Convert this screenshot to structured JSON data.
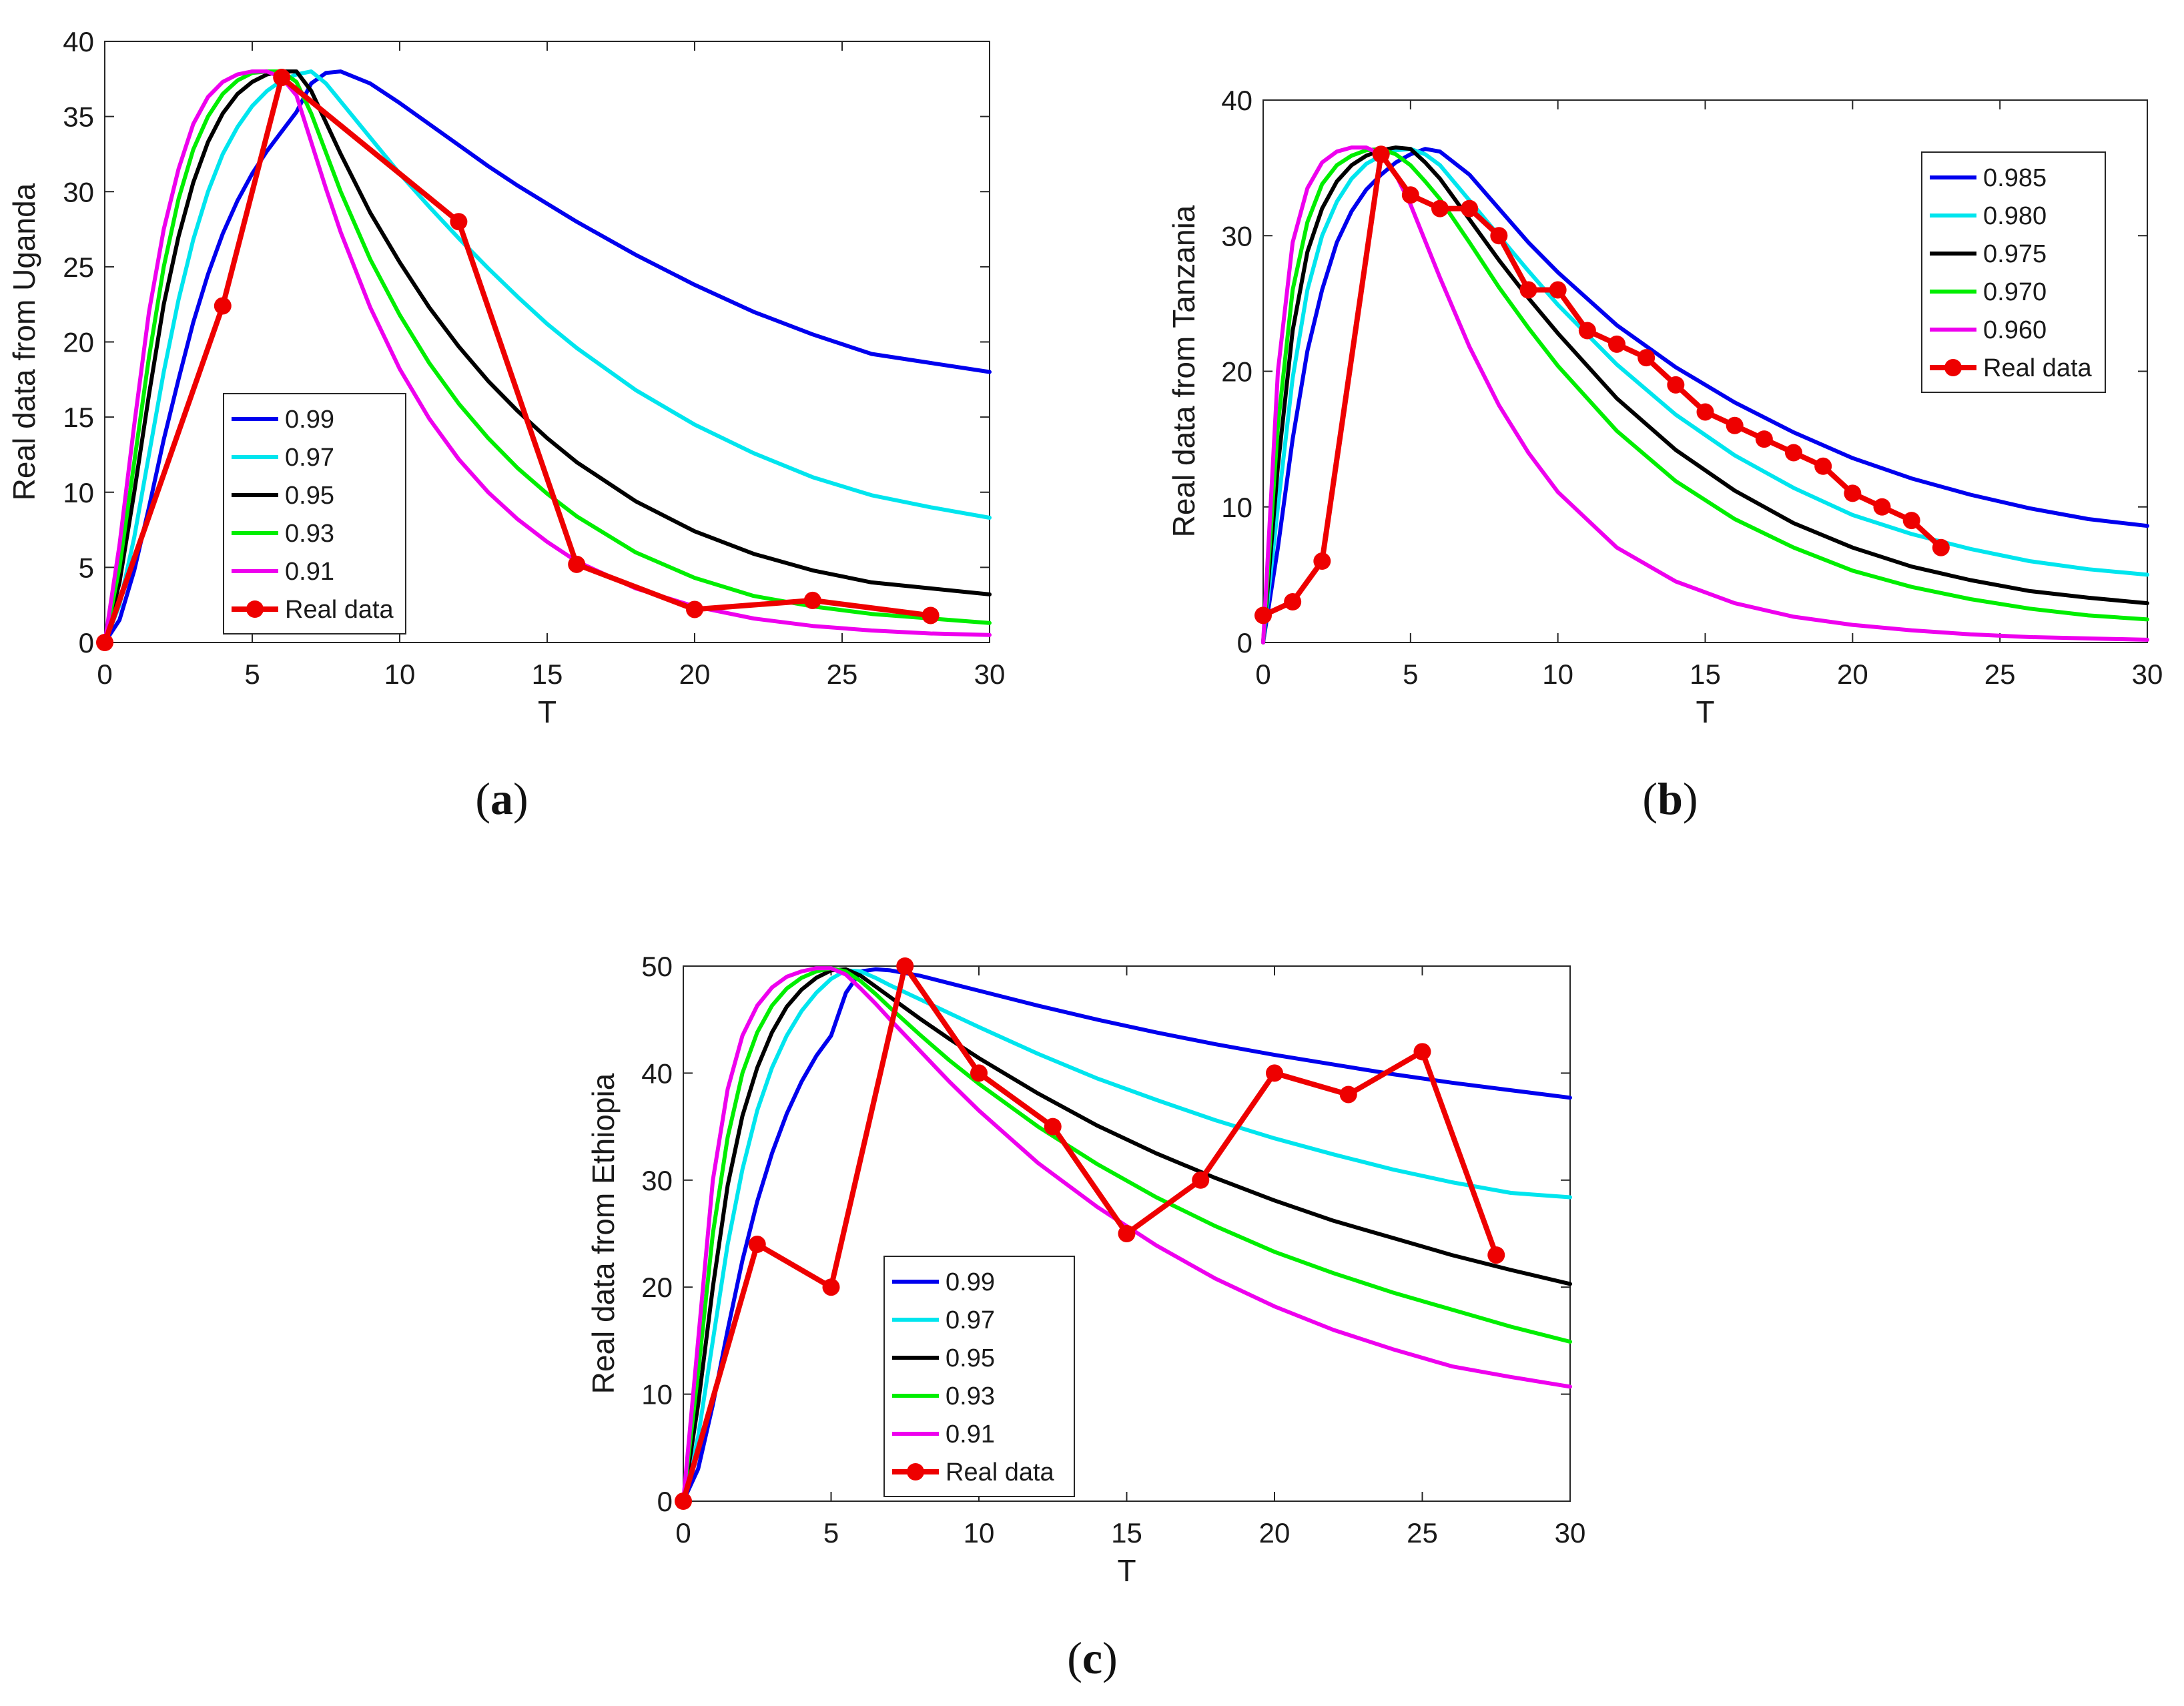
{
  "chart_data": [
    {
      "type": "line",
      "panel_label": "a",
      "xlabel": "T",
      "ylabel": "Real data from Uganda",
      "xlim": [
        0,
        30
      ],
      "ylim": [
        0,
        40
      ],
      "xticks": [
        0,
        5,
        10,
        15,
        20,
        25,
        30
      ],
      "yticks": [
        0,
        5,
        10,
        15,
        20,
        25,
        30,
        35,
        40
      ],
      "grid": false,
      "legend_position": "lower-left",
      "series": [
        {
          "name": "0.99",
          "color": "#0000ee",
          "x": [
            0,
            0.5,
            1,
            1.5,
            2,
            2.5,
            3,
            3.5,
            4,
            4.5,
            5,
            5.5,
            6,
            6.5,
            7,
            7.5,
            8,
            9,
            10,
            11,
            12,
            13,
            14,
            15,
            16,
            18,
            20,
            22,
            24,
            26,
            28,
            30
          ],
          "y": [
            0,
            1.5,
            4.8,
            9,
            13.5,
            17.5,
            21.3,
            24.5,
            27.2,
            29.4,
            31.2,
            32.7,
            34,
            35.3,
            37.2,
            37.9,
            38,
            37.2,
            35.9,
            34.5,
            33.1,
            31.7,
            30.4,
            29.2,
            28,
            25.8,
            23.8,
            22,
            20.5,
            19.2,
            18.6,
            18
          ]
        },
        {
          "name": "0.97",
          "color": "#00e5ee",
          "x": [
            0,
            0.5,
            1,
            1.5,
            2,
            2.5,
            3,
            3.5,
            4,
            4.5,
            5,
            5.5,
            6,
            6.5,
            7,
            7.5,
            8,
            9,
            10,
            11,
            12,
            13,
            14,
            15,
            16,
            18,
            20,
            22,
            24,
            26,
            28,
            30
          ],
          "y": [
            0,
            2.5,
            7,
            12.5,
            18,
            22.8,
            26.8,
            30,
            32.5,
            34.3,
            35.7,
            36.7,
            37.4,
            37.8,
            38,
            37.2,
            36,
            33.6,
            31.2,
            29,
            26.9,
            24.9,
            23,
            21.2,
            19.6,
            16.8,
            14.5,
            12.6,
            11,
            9.8,
            9,
            8.3
          ]
        },
        {
          "name": "0.95",
          "color": "#000000",
          "x": [
            0,
            0.5,
            1,
            1.5,
            2,
            2.5,
            3,
            3.5,
            4,
            4.5,
            5,
            5.5,
            6,
            6.5,
            7,
            7.5,
            8,
            9,
            10,
            11,
            12,
            13,
            14,
            15,
            16,
            18,
            20,
            22,
            24,
            26,
            28,
            30
          ],
          "y": [
            0,
            4,
            10,
            16.5,
            22.5,
            27,
            30.6,
            33.3,
            35.2,
            36.5,
            37.3,
            37.8,
            38,
            38,
            36.7,
            34.6,
            32.5,
            28.6,
            25.3,
            22.3,
            19.7,
            17.4,
            15.4,
            13.6,
            12,
            9.4,
            7.4,
            5.9,
            4.8,
            4,
            3.6,
            3.2
          ]
        },
        {
          "name": "0.93",
          "color": "#00ee00",
          "x": [
            0,
            0.5,
            1,
            1.5,
            2,
            2.5,
            3,
            3.5,
            4,
            4.5,
            5,
            5.5,
            6,
            6.5,
            7,
            7.5,
            8,
            9,
            10,
            11,
            12,
            13,
            14,
            15,
            16,
            18,
            20,
            22,
            24,
            26,
            28,
            30
          ],
          "y": [
            0,
            5,
            12,
            19,
            25,
            29.5,
            32.8,
            35,
            36.5,
            37.4,
            37.9,
            38,
            38,
            37.3,
            35.2,
            32.6,
            30,
            25.5,
            21.8,
            18.6,
            15.9,
            13.6,
            11.6,
            9.9,
            8.4,
            6,
            4.3,
            3.1,
            2.4,
            1.9,
            1.6,
            1.3
          ]
        },
        {
          "name": "0.91",
          "color": "#ee00ee",
          "x": [
            0,
            0.5,
            1,
            1.5,
            2,
            2.5,
            3,
            3.5,
            4,
            4.5,
            5,
            5.5,
            6,
            6.5,
            7,
            7.5,
            8,
            9,
            10,
            11,
            12,
            13,
            14,
            15,
            16,
            18,
            20,
            22,
            24,
            26,
            28,
            30
          ],
          "y": [
            0,
            6.5,
            14.5,
            22,
            27.5,
            31.5,
            34.5,
            36.3,
            37.3,
            37.8,
            38,
            38,
            37.6,
            36.4,
            33.3,
            30.2,
            27.3,
            22.3,
            18.2,
            14.9,
            12.2,
            10,
            8.2,
            6.7,
            5.4,
            3.6,
            2.4,
            1.6,
            1.1,
            0.8,
            0.6,
            0.5
          ]
        },
        {
          "name": "Real data",
          "color": "#ee0000",
          "markers": true,
          "x": [
            0,
            4,
            6,
            12,
            16,
            20,
            24,
            28
          ],
          "y": [
            0,
            22.4,
            37.6,
            28,
            5.2,
            2.2,
            2.8,
            1.8
          ]
        }
      ]
    },
    {
      "type": "line",
      "panel_label": "b",
      "xlabel": "T",
      "ylabel": "Real data from Tanzania",
      "xlim": [
        0,
        30
      ],
      "ylim": [
        0,
        40
      ],
      "xticks": [
        0,
        5,
        10,
        15,
        20,
        25,
        30
      ],
      "yticks": [
        0,
        10,
        20,
        30,
        40
      ],
      "grid": false,
      "legend_position": "top-right",
      "series": [
        {
          "name": "0.985",
          "color": "#0000ee",
          "x": [
            0,
            0.5,
            1,
            1.5,
            2,
            2.5,
            3,
            3.5,
            4,
            4.5,
            5,
            5.5,
            6,
            7,
            8,
            9,
            10,
            12,
            14,
            16,
            18,
            20,
            22,
            24,
            26,
            28,
            30
          ],
          "y": [
            0,
            7,
            15,
            21.5,
            26,
            29.5,
            31.8,
            33.4,
            34.5,
            35.4,
            36,
            36.4,
            36.2,
            34.5,
            32,
            29.5,
            27.3,
            23.4,
            20.3,
            17.7,
            15.5,
            13.6,
            12.1,
            10.9,
            9.9,
            9.1,
            8.6
          ]
        },
        {
          "name": "0.980",
          "color": "#00e5ee",
          "x": [
            0,
            0.5,
            1,
            1.5,
            2,
            2.5,
            3,
            3.5,
            4,
            4.5,
            5,
            5.5,
            6,
            7,
            8,
            9,
            10,
            12,
            14,
            16,
            18,
            20,
            22,
            24,
            26,
            28,
            30
          ],
          "y": [
            0,
            10,
            19.5,
            26,
            30,
            32.5,
            34.2,
            35.3,
            35.9,
            36.3,
            36.4,
            36,
            35.2,
            32.6,
            30,
            27.4,
            24.9,
            20.5,
            16.8,
            13.8,
            11.4,
            9.4,
            8,
            6.9,
            6,
            5.4,
            5
          ]
        },
        {
          "name": "0.975",
          "color": "#000000",
          "x": [
            0,
            0.5,
            1,
            1.5,
            2,
            2.5,
            3,
            3.5,
            4,
            4.5,
            5,
            5.5,
            6,
            7,
            8,
            9,
            10,
            12,
            14,
            16,
            18,
            20,
            22,
            24,
            26,
            28,
            30
          ],
          "y": [
            0,
            13,
            23,
            28.8,
            32,
            34,
            35.2,
            35.9,
            36.3,
            36.5,
            36.4,
            35.4,
            34.2,
            31.2,
            28.2,
            25.4,
            22.8,
            18,
            14.2,
            11.2,
            8.8,
            7,
            5.6,
            4.6,
            3.8,
            3.3,
            2.9
          ]
        },
        {
          "name": "0.970",
          "color": "#00ee00",
          "x": [
            0,
            0.5,
            1,
            1.5,
            2,
            2.5,
            3,
            3.5,
            4,
            4.5,
            5,
            5.5,
            6,
            7,
            8,
            9,
            10,
            12,
            14,
            16,
            18,
            20,
            22,
            24,
            26,
            28,
            30
          ],
          "y": [
            0,
            16,
            26,
            31,
            33.8,
            35.2,
            35.9,
            36.3,
            36.4,
            36,
            35.2,
            34,
            32.7,
            29.5,
            26.2,
            23.2,
            20.4,
            15.6,
            11.9,
            9.1,
            7,
            5.3,
            4.1,
            3.2,
            2.5,
            2,
            1.7
          ]
        },
        {
          "name": "0.960",
          "color": "#ee00ee",
          "x": [
            0,
            0.5,
            1,
            1.5,
            2,
            2.5,
            3,
            3.5,
            4,
            4.5,
            5,
            5.5,
            6,
            7,
            8,
            9,
            10,
            12,
            14,
            16,
            18,
            20,
            22,
            24,
            26,
            28,
            30
          ],
          "y": [
            0,
            20,
            29.5,
            33.5,
            35.4,
            36.2,
            36.5,
            36.5,
            36,
            34.5,
            32.3,
            29.6,
            26.9,
            21.8,
            17.5,
            14,
            11.1,
            7,
            4.5,
            2.9,
            1.9,
            1.3,
            0.9,
            0.6,
            0.4,
            0.3,
            0.2
          ]
        },
        {
          "name": "Real data",
          "color": "#ee0000",
          "markers": true,
          "x": [
            0,
            1,
            2,
            4,
            5,
            6,
            7,
            8,
            9,
            10,
            11,
            12,
            13,
            14,
            15,
            16,
            17,
            18,
            19,
            20,
            21,
            22,
            23
          ],
          "y": [
            2,
            3,
            6,
            36,
            33,
            32,
            32,
            30,
            26,
            26,
            23,
            22,
            21,
            19,
            17,
            16,
            15,
            14,
            13,
            11,
            10,
            9,
            7
          ]
        }
      ]
    },
    {
      "type": "line",
      "panel_label": "c",
      "xlabel": "T",
      "ylabel": "Real data from Ethiopia",
      "xlim": [
        0,
        30
      ],
      "ylim": [
        0,
        50
      ],
      "xticks": [
        0,
        5,
        10,
        15,
        20,
        25,
        30
      ],
      "yticks": [
        0,
        10,
        20,
        30,
        40,
        50
      ],
      "grid": false,
      "legend_position": "lower-left",
      "series": [
        {
          "name": "0.99",
          "color": "#0000ee",
          "x": [
            0,
            0.5,
            1,
            1.5,
            2,
            2.5,
            3,
            3.5,
            4,
            4.5,
            5,
            5.5,
            6,
            6.5,
            7,
            8,
            9,
            10,
            12,
            14,
            16,
            18,
            20,
            22,
            24,
            26,
            28,
            30
          ],
          "y": [
            0,
            3,
            9,
            16,
            22.5,
            28,
            32.5,
            36.2,
            39.2,
            41.6,
            43.5,
            47.5,
            49.5,
            49.7,
            49.6,
            49.1,
            48.4,
            47.7,
            46.3,
            45,
            43.8,
            42.7,
            41.7,
            40.8,
            39.9,
            39.1,
            38.4,
            37.7
          ]
        },
        {
          "name": "0.97",
          "color": "#00e5ee",
          "x": [
            0,
            0.5,
            1,
            1.5,
            2,
            2.5,
            3,
            3.5,
            4,
            4.5,
            5,
            5.5,
            6,
            6.5,
            7,
            8,
            9,
            10,
            12,
            14,
            16,
            18,
            20,
            22,
            24,
            26,
            28,
            30
          ],
          "y": [
            0,
            6,
            15,
            24,
            31,
            36.5,
            40.5,
            43.5,
            45.8,
            47.5,
            48.8,
            49.6,
            49.5,
            48.9,
            48.2,
            46.9,
            45.6,
            44.3,
            41.8,
            39.5,
            37.5,
            35.6,
            33.9,
            32.4,
            31,
            29.8,
            28.8,
            28.4
          ]
        },
        {
          "name": "0.95",
          "color": "#000000",
          "x": [
            0,
            0.5,
            1,
            1.5,
            2,
            2.5,
            3,
            3.5,
            4,
            4.5,
            5,
            5.5,
            6,
            6.5,
            7,
            8,
            9,
            10,
            12,
            14,
            16,
            18,
            20,
            22,
            24,
            26,
            28,
            30
          ],
          "y": [
            0,
            9,
            20,
            29.5,
            36,
            40.5,
            43.8,
            46.2,
            47.8,
            48.9,
            49.6,
            49.7,
            49.1,
            48.1,
            47.1,
            45.1,
            43.2,
            41.4,
            38.1,
            35.1,
            32.5,
            30.2,
            28.1,
            26.2,
            24.6,
            23,
            21.6,
            20.3
          ]
        },
        {
          "name": "0.93",
          "color": "#00ee00",
          "x": [
            0,
            0.5,
            1,
            1.5,
            2,
            2.5,
            3,
            3.5,
            4,
            4.5,
            5,
            5.5,
            6,
            6.5,
            7,
            8,
            9,
            10,
            12,
            14,
            16,
            18,
            20,
            22,
            24,
            26,
            28,
            30
          ],
          "y": [
            0,
            12,
            25,
            34,
            40,
            43.8,
            46.3,
            47.9,
            48.9,
            49.5,
            49.8,
            49.5,
            48.6,
            47.4,
            46.1,
            43.6,
            41.2,
            39,
            35,
            31.5,
            28.4,
            25.7,
            23.3,
            21.3,
            19.5,
            17.9,
            16.3,
            14.9
          ]
        },
        {
          "name": "0.91",
          "color": "#ee00ee",
          "x": [
            0,
            0.5,
            1,
            1.5,
            2,
            2.5,
            3,
            3.5,
            4,
            4.5,
            5,
            5.5,
            6,
            6.5,
            7,
            8,
            9,
            10,
            12,
            14,
            16,
            18,
            20,
            22,
            24,
            26,
            28,
            30
          ],
          "y": [
            0,
            15,
            30,
            38.5,
            43.5,
            46.3,
            48,
            49,
            49.5,
            49.8,
            49.8,
            49.2,
            47.9,
            46.5,
            45,
            42.1,
            39.2,
            36.5,
            31.6,
            27.5,
            23.9,
            20.8,
            18.2,
            16,
            14.2,
            12.6,
            11.6,
            10.7
          ]
        },
        {
          "name": "Real data",
          "color": "#ee0000",
          "markers": true,
          "x": [
            0,
            2.5,
            5,
            7.5,
            10,
            12.5,
            15,
            17.5,
            20,
            22.5,
            25,
            27.5
          ],
          "y": [
            0,
            24,
            20,
            50,
            40,
            35,
            25,
            30,
            40,
            38,
            42,
            23
          ]
        }
      ]
    }
  ]
}
